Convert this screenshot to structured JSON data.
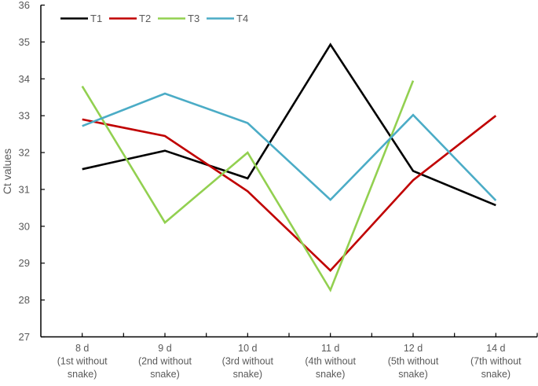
{
  "chart_data": {
    "type": "line",
    "title": "",
    "xlabel": "",
    "ylabel": "Ct values",
    "ylim": [
      27,
      36
    ],
    "yticks": [
      27,
      28,
      29,
      30,
      31,
      32,
      33,
      34,
      35,
      36
    ],
    "grid": false,
    "legend_position": "top-left (inside)",
    "categories": [
      [
        "8 d",
        "(1st without",
        "snake)"
      ],
      [
        "9 d",
        "(2nd without",
        "snake)"
      ],
      [
        "10 d",
        "(3rd without",
        "snake)"
      ],
      [
        "11 d",
        "(4th without",
        "snake)"
      ],
      [
        "12 d",
        "(5th without",
        "snake)"
      ],
      [
        "14 d",
        "(7th without",
        "snake)"
      ]
    ],
    "series": [
      {
        "name": "T1",
        "color": "#000000",
        "values": [
          31.55,
          32.05,
          31.3,
          34.93,
          31.5,
          30.57
        ]
      },
      {
        "name": "T2",
        "color": "#C00000",
        "values": [
          32.9,
          32.45,
          30.95,
          28.8,
          31.25,
          33.0
        ]
      },
      {
        "name": "T3",
        "color": "#92D050",
        "values": [
          33.8,
          30.1,
          32.0,
          28.27,
          33.95,
          null
        ]
      },
      {
        "name": "T4",
        "color": "#4BACC6",
        "values": [
          32.72,
          33.6,
          32.8,
          30.72,
          33.02,
          30.7
        ]
      }
    ]
  }
}
